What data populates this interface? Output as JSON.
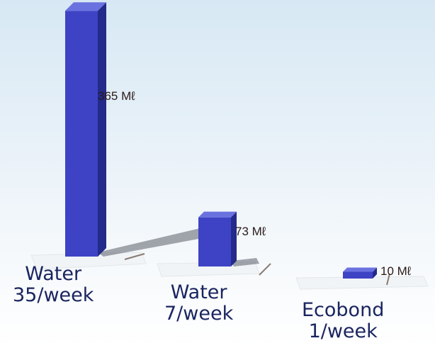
{
  "chart_data": {
    "type": "bar",
    "categories": [
      "Water 35/week",
      "Water 7/week",
      "Ecobond 1/week"
    ],
    "category_lines": [
      [
        "Water",
        "35/week"
      ],
      [
        "Water",
        "7/week"
      ],
      [
        "Ecobond",
        "1/week"
      ]
    ],
    "values": [
      365,
      73,
      10
    ],
    "value_labels": [
      "365 Mℓ",
      "73 Mℓ",
      "10 Mℓ"
    ],
    "unit": "Mℓ",
    "style": "3d-perspective",
    "bar_color": "#3d43c4",
    "grid": false,
    "legend": "none"
  },
  "colors": {
    "background_top": "#d7e8f4",
    "background_bottom": "#ffffff",
    "bar_front": "#3d43c4",
    "bar_side": "#232a8a",
    "bar_top": "#6a72df",
    "label_text": "#1a2560"
  }
}
